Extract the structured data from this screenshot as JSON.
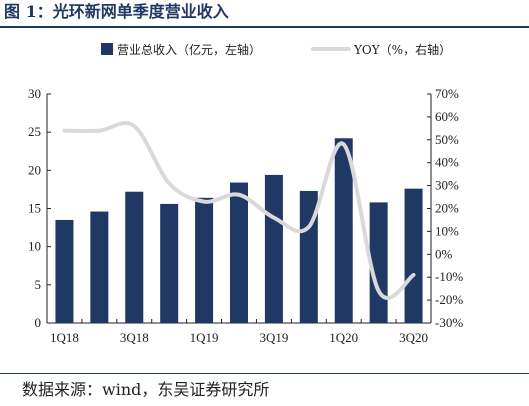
{
  "figure_title": "图 1：光环新网单季度营业收入",
  "source_note": "数据来源：wind，东吴证券研究所",
  "colors": {
    "bar": "#1f3864",
    "line": "#d9d9d9",
    "axis": "#222222",
    "title": "#1f3864"
  },
  "chart_data": {
    "type": "bar",
    "categories": [
      "1Q18",
      "2Q18",
      "3Q18",
      "4Q18",
      "1Q19",
      "2Q19",
      "3Q19",
      "4Q19",
      "1Q20",
      "2Q20",
      "3Q20"
    ],
    "x_tick_labels": [
      "1Q18",
      "3Q18",
      "1Q19",
      "3Q19",
      "1Q20",
      "3Q20"
    ],
    "series": [
      {
        "name": "营业总收入（亿元，左轴）",
        "type": "bar",
        "axis": "left",
        "values": [
          13.5,
          14.6,
          17.2,
          15.6,
          16.4,
          18.4,
          19.4,
          17.3,
          24.2,
          15.8,
          17.6
        ]
      },
      {
        "name": "YOY（%，右轴）",
        "type": "line",
        "axis": "right",
        "values": [
          54,
          54,
          56,
          31,
          23,
          26,
          16,
          12,
          48,
          -16,
          -9
        ]
      }
    ],
    "y_left": {
      "lim": [
        0,
        30
      ],
      "ticks": [
        0,
        5,
        10,
        15,
        20,
        25,
        30
      ]
    },
    "y_right": {
      "lim": [
        -30,
        70
      ],
      "ticks": [
        -30,
        -20,
        -10,
        0,
        10,
        20,
        30,
        40,
        50,
        60,
        70
      ],
      "unit": "%"
    },
    "legend_position": "top",
    "grid": false
  }
}
